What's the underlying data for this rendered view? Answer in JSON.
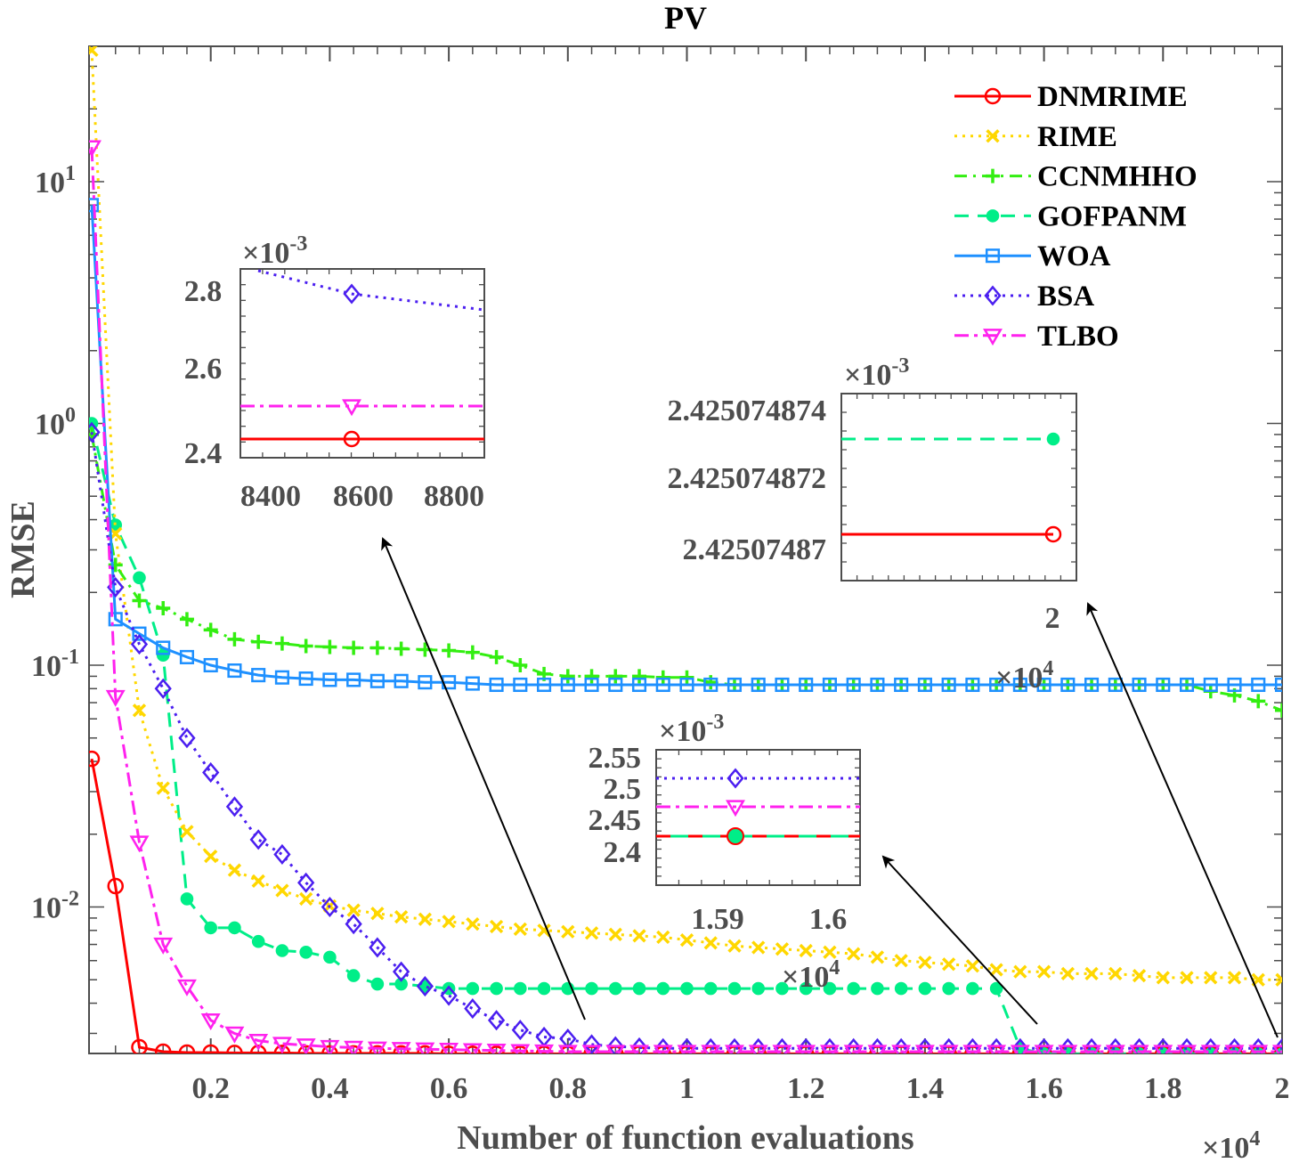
{
  "chart_data": {
    "type": "line",
    "title": "PV",
    "xlabel": "Number of function evaluations",
    "ylabel": "RMSE",
    "xscale": "linear",
    "yscale": "log",
    "xlim": [
      0,
      20000
    ],
    "ylim": [
      0.00243,
      36
    ],
    "x_tick_labels": [
      "0.2",
      "0.4",
      "0.6",
      "0.8",
      "1",
      "1.2",
      "1.4",
      "1.6",
      "1.8",
      "2"
    ],
    "x_ticks": [
      2000,
      4000,
      6000,
      8000,
      10000,
      12000,
      14000,
      16000,
      18000,
      20000
    ],
    "x_exponent_label": "×10^4",
    "y_tick_labels": [
      "10^1",
      "10^0",
      "10^-1",
      "10^-2"
    ],
    "y_ticks": [
      10,
      1,
      0.1,
      0.01
    ],
    "grid": false,
    "legend_position": "upper right",
    "x": [
      0,
      400,
      800,
      1200,
      1600,
      2000,
      2400,
      2800,
      3200,
      3600,
      4000,
      4400,
      4800,
      5200,
      5600,
      6000,
      6400,
      6800,
      7200,
      7600,
      8000,
      8400,
      8800,
      9200,
      9600,
      10000,
      10400,
      10800,
      11200,
      11600,
      12000,
      12400,
      12800,
      13200,
      13600,
      14000,
      14400,
      14800,
      15200,
      15600,
      16000,
      16400,
      16800,
      17200,
      17600,
      18000,
      18400,
      18800,
      19200,
      19600,
      20000
    ],
    "series": [
      {
        "name": "DNMRIME",
        "color": "#ff0000",
        "dash": "",
        "marker": "circle",
        "values": [
          0.041,
          0.0122,
          0.00263,
          0.00252,
          0.0025,
          0.0025,
          0.00249,
          0.00249,
          0.00249,
          0.00248,
          0.00248,
          0.00248,
          0.00248,
          0.00248,
          0.00248,
          0.00247,
          0.00247,
          0.00247,
          0.00247,
          0.00247,
          0.00247,
          0.00247,
          0.00247,
          0.00247,
          0.00247,
          0.00247,
          0.00247,
          0.00247,
          0.00247,
          0.00247,
          0.00247,
          0.00247,
          0.00247,
          0.00247,
          0.00247,
          0.00247,
          0.00247,
          0.00247,
          0.00247,
          0.00247,
          0.00247,
          0.00247,
          0.00247,
          0.00247,
          0.00247,
          0.00247,
          0.00247,
          0.00247,
          0.00247,
          0.00247,
          0.00247
        ]
      },
      {
        "name": "RIME",
        "color": "#ffd700",
        "dash": "3,6",
        "marker": "x",
        "values": [
          35,
          0.35,
          0.065,
          0.031,
          0.0205,
          0.0162,
          0.0142,
          0.0128,
          0.0117,
          0.0108,
          0.0101,
          0.0097,
          0.0094,
          0.0091,
          0.0089,
          0.0087,
          0.0085,
          0.0083,
          0.0081,
          0.008,
          0.0079,
          0.0078,
          0.0077,
          0.0076,
          0.0075,
          0.0073,
          0.0071,
          0.0069,
          0.0068,
          0.0067,
          0.0066,
          0.0065,
          0.0064,
          0.0062,
          0.006,
          0.0059,
          0.0058,
          0.0057,
          0.0055,
          0.0054,
          0.0054,
          0.0053,
          0.0053,
          0.0053,
          0.0052,
          0.0051,
          0.0051,
          0.0051,
          0.0051,
          0.005,
          0.005
        ]
      },
      {
        "name": "CCNMHHO",
        "color": "#33ee11",
        "dash": "14,7,3,7",
        "marker": "plus",
        "values": [
          0.9,
          0.26,
          0.185,
          0.172,
          0.155,
          0.14,
          0.128,
          0.125,
          0.123,
          0.12,
          0.119,
          0.118,
          0.118,
          0.117,
          0.116,
          0.115,
          0.113,
          0.108,
          0.1,
          0.092,
          0.09,
          0.09,
          0.09,
          0.09,
          0.089,
          0.089,
          0.085,
          0.083,
          0.083,
          0.083,
          0.083,
          0.083,
          0.083,
          0.083,
          0.083,
          0.083,
          0.083,
          0.083,
          0.083,
          0.083,
          0.083,
          0.083,
          0.083,
          0.083,
          0.083,
          0.083,
          0.083,
          0.078,
          0.075,
          0.071,
          0.065
        ]
      },
      {
        "name": "GOFPANM",
        "color": "#00ee88",
        "dash": "16,10",
        "marker": "asterisk",
        "values": [
          1.0,
          0.38,
          0.23,
          0.11,
          0.0108,
          0.0082,
          0.0082,
          0.0072,
          0.0066,
          0.0065,
          0.0062,
          0.0052,
          0.0048,
          0.0048,
          0.0047,
          0.0046,
          0.0046,
          0.0046,
          0.0046,
          0.0046,
          0.0046,
          0.0046,
          0.0046,
          0.0046,
          0.0046,
          0.0046,
          0.0046,
          0.0046,
          0.0046,
          0.0046,
          0.0046,
          0.0046,
          0.0046,
          0.0046,
          0.0046,
          0.0046,
          0.0046,
          0.0046,
          0.0046,
          0.0026,
          0.00247,
          0.00247,
          0.00247,
          0.00247,
          0.00247,
          0.00247,
          0.00247,
          0.00247,
          0.00247,
          0.00247,
          0.00247
        ]
      },
      {
        "name": "WOA",
        "color": "#1e90ff",
        "dash": "",
        "marker": "square",
        "values": [
          8.0,
          0.155,
          0.135,
          0.118,
          0.108,
          0.1,
          0.095,
          0.091,
          0.089,
          0.088,
          0.087,
          0.087,
          0.086,
          0.086,
          0.085,
          0.085,
          0.084,
          0.083,
          0.083,
          0.083,
          0.083,
          0.083,
          0.083,
          0.083,
          0.083,
          0.083,
          0.083,
          0.083,
          0.083,
          0.083,
          0.083,
          0.083,
          0.083,
          0.083,
          0.083,
          0.083,
          0.083,
          0.083,
          0.083,
          0.083,
          0.083,
          0.083,
          0.083,
          0.083,
          0.083,
          0.083,
          0.083,
          0.083,
          0.083,
          0.083,
          0.083
        ]
      },
      {
        "name": "BSA",
        "color": "#4b1ff0",
        "dash": "3,6",
        "marker": "diamond",
        "values": [
          0.92,
          0.21,
          0.122,
          0.08,
          0.05,
          0.036,
          0.026,
          0.019,
          0.0165,
          0.0126,
          0.01,
          0.0085,
          0.0068,
          0.0054,
          0.0047,
          0.0043,
          0.0038,
          0.0034,
          0.0031,
          0.0029,
          0.00285,
          0.0027,
          0.00265,
          0.00262,
          0.0026,
          0.0026,
          0.0026,
          0.0026,
          0.0026,
          0.0026,
          0.0026,
          0.0026,
          0.0026,
          0.0026,
          0.0026,
          0.0026,
          0.0026,
          0.0026,
          0.0026,
          0.0026,
          0.0026,
          0.0026,
          0.0026,
          0.0026,
          0.0026,
          0.0026,
          0.0026,
          0.0026,
          0.0026,
          0.0026,
          0.0026
        ]
      },
      {
        "name": "TLBO",
        "color": "#ff22ee",
        "dash": "16,6,4,6",
        "marker": "triangle-down",
        "values": [
          13.9,
          0.074,
          0.0185,
          0.007,
          0.0047,
          0.0034,
          0.003,
          0.0028,
          0.00272,
          0.00268,
          0.00264,
          0.00262,
          0.0026,
          0.00259,
          0.00258,
          0.00257,
          0.00256,
          0.00255,
          0.00254,
          0.00253,
          0.00252,
          0.00252,
          0.00252,
          0.00252,
          0.00252,
          0.00252,
          0.00252,
          0.00252,
          0.00252,
          0.00252,
          0.00252,
          0.00252,
          0.00252,
          0.00252,
          0.00252,
          0.00252,
          0.00252,
          0.00252,
          0.00252,
          0.00252,
          0.00252,
          0.00252,
          0.00252,
          0.00252,
          0.00252,
          0.00252,
          0.00252,
          0.00252,
          0.00252,
          0.00252,
          0.00252
        ]
      }
    ],
    "insets": [
      {
        "id": "inset-1",
        "exponent_label": "×10^-3",
        "x_range": [
          8330,
          8880
        ],
        "y_range": [
          2.37,
          2.85
        ],
        "x_tick_labels": [
          "8400",
          "8600",
          "8800"
        ],
        "y_tick_labels": [
          "2.8",
          "2.6",
          "2.4"
        ],
        "lines": [
          {
            "series": "BSA",
            "points": [
              [
                8330,
                2.85
              ],
              [
                8600,
                2.78
              ],
              [
                8880,
                2.72
              ]
            ],
            "marker_at": 8600
          },
          {
            "series": "TLBO",
            "points": [
              [
                8330,
                2.51
              ],
              [
                8880,
                2.5
              ]
            ],
            "marker_at": 8600
          },
          {
            "series": "DNMRIME",
            "points": [
              [
                8330,
                2.425
              ],
              [
                8880,
                2.425
              ]
            ],
            "marker_at": 8600
          }
        ]
      },
      {
        "id": "inset-2",
        "exponent_label": "×10^-3",
        "x_tick_labels": [
          "2"
        ],
        "x_range": [
          19980,
          20005
        ],
        "y_tick_labels": [
          "2.425074874",
          "2.425074872",
          "2.42507487"
        ],
        "lines": [
          {
            "series": "GOFPANM",
            "level": 2.4250748735
          },
          {
            "series": "DNMRIME",
            "level": 2.4250748705
          }
        ]
      },
      {
        "id": "inset-3",
        "exponent_label": "×10^-3",
        "x_sub_exponent": "×10^4",
        "x_tick_labels": [
          "1.59",
          "1.6"
        ],
        "y_tick_labels": [
          "2.55",
          "2.5",
          "2.45",
          "2.4"
        ],
        "lines": [
          {
            "series": "BSA",
            "level": 2.51
          },
          {
            "series": "TLBO",
            "level": 2.47
          },
          {
            "series": "GOFPANM",
            "level": 2.425
          },
          {
            "series": "DNMRIME",
            "level": 2.425
          }
        ]
      }
    ],
    "annotations": [
      "arrow from (8200, 0.0027) to inset-1",
      "arrow from (16000, 0.0027) to inset-3",
      "arrow from (20000, 0.00247) to inset-2"
    ]
  },
  "labels": {
    "title": "PV",
    "xlabel": "Number of function evaluations",
    "ylabel": "RMSE",
    "x_exponent_base": "×10",
    "x_exponent_power": "4",
    "inset_exp_base": "×10",
    "inset_exp_power": "-3"
  }
}
